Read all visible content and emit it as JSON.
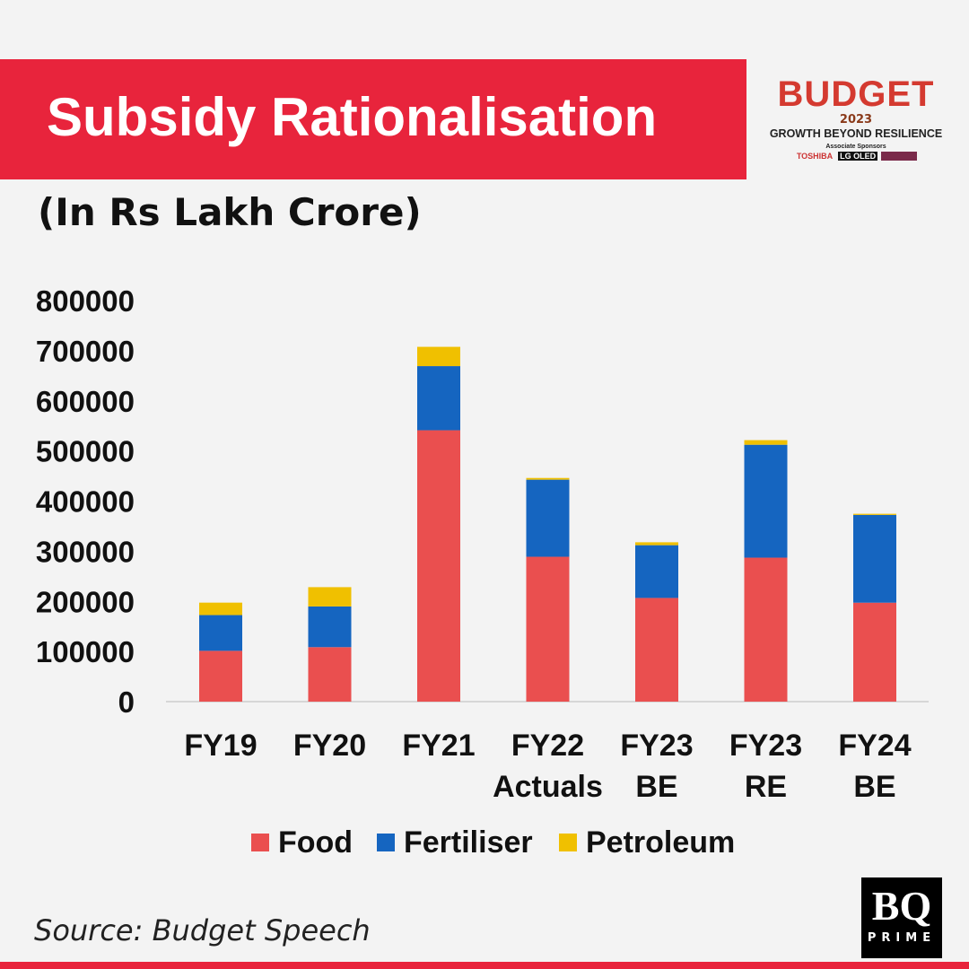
{
  "header": {
    "title": "Subsidy Rationalisation",
    "subtitle": "(In Rs Lakh Crore)"
  },
  "logo": {
    "main": "BUDGET",
    "year": "2023",
    "tagline": "GROWTH BEYOND RESILIENCE",
    "sponsors_label": "Associate Sponsors",
    "sponsors": [
      "TOSHIBA",
      "LG OLED"
    ]
  },
  "footer": {
    "source": "Source: Budget Speech",
    "brand_top": "BQ",
    "brand_bottom": "PRIME"
  },
  "chart_data": {
    "type": "bar",
    "stacked": true,
    "title": "Subsidy Rationalisation",
    "subtitle": "(In Rs Lakh Crore)",
    "categories": [
      [
        "FY19"
      ],
      [
        "FY20"
      ],
      [
        "FY21"
      ],
      [
        "FY22",
        "Actuals"
      ],
      [
        "FY23",
        "BE"
      ],
      [
        "FY23",
        "RE"
      ],
      [
        "FY24",
        "BE"
      ]
    ],
    "series": [
      {
        "name": "Food",
        "color": "#ea4f4f",
        "values": [
          101327,
          108688,
          541330,
          288969,
          206831,
          287194,
          197350
        ]
      },
      {
        "name": "Fertiliser",
        "color": "#1565c0",
        "values": [
          71309,
          81124,
          127922,
          153758,
          105222,
          225220,
          175100
        ]
      },
      {
        "name": "Petroleum",
        "color": "#f0c000",
        "values": [
          24833,
          38529,
          38455,
          3423,
          5813,
          9171,
          2257
        ]
      }
    ],
    "ylim": [
      0,
      800000
    ],
    "yticks": [
      0,
      100000,
      200000,
      300000,
      400000,
      500000,
      600000,
      700000,
      800000
    ],
    "grid": false,
    "legend": "bottom"
  }
}
